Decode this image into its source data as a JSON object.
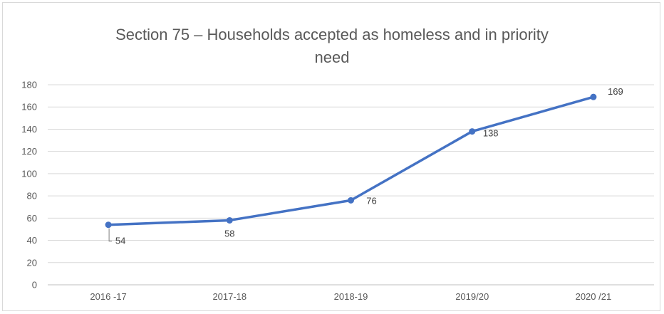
{
  "chart_data": {
    "type": "line",
    "title_lines": [
      "Section 75 – Households accepted as homeless and in priority",
      "need"
    ],
    "categories": [
      "2016 -17",
      "2017-18",
      "2018-19",
      "2019/20",
      "2020 /21"
    ],
    "series": [
      {
        "values": [
          54,
          58,
          76,
          138,
          169
        ],
        "color": "#4472c4"
      }
    ],
    "data_labels": [
      "54",
      "58",
      "76",
      "138",
      "169"
    ],
    "ylim": [
      0,
      180
    ],
    "y_ticks": [
      0,
      20,
      40,
      60,
      80,
      100,
      120,
      140,
      160,
      180
    ],
    "y_tick_labels": [
      "0",
      "20",
      "40",
      "60",
      "80",
      "100",
      "120",
      "140",
      "160",
      "180"
    ],
    "grid": true,
    "legend": "none"
  }
}
